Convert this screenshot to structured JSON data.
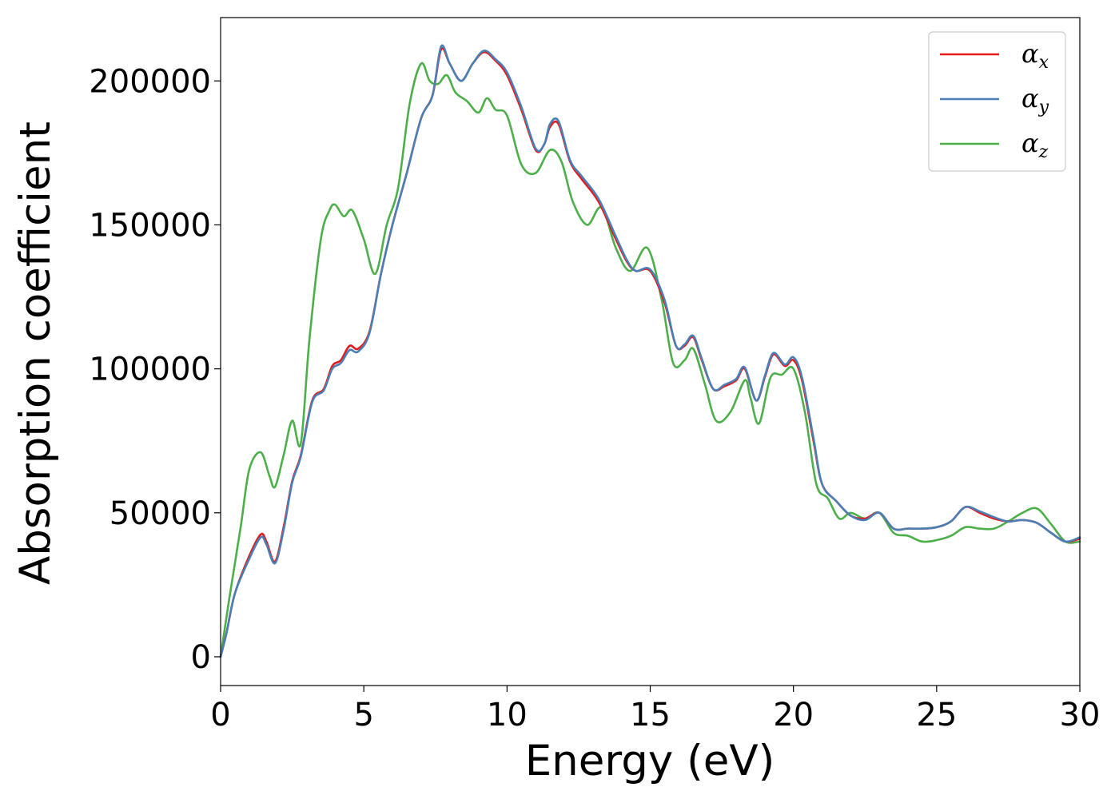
{
  "chart_data": {
    "type": "line",
    "title": "",
    "xlabel": "Energy (eV)",
    "ylabel": "Absorption coefficient",
    "xlim": [
      0,
      30
    ],
    "ylim": [
      -10000,
      222000
    ],
    "xticks": [
      0,
      5,
      10,
      15,
      20,
      25,
      30
    ],
    "xtick_labels": [
      "0",
      "5",
      "10",
      "15",
      "20",
      "25",
      "30"
    ],
    "yticks": [
      0,
      50000,
      100000,
      150000,
      200000
    ],
    "ytick_labels": [
      "0",
      "50000",
      "100000",
      "150000",
      "200000"
    ],
    "grid": false,
    "legend_position": "top-right",
    "series": [
      {
        "name": "α_x",
        "legend_base": "α",
        "legend_sub": "x",
        "color": "#e41a1c",
        "x": [
          0,
          0.2,
          0.5,
          1.0,
          1.4,
          1.6,
          1.9,
          2.2,
          2.5,
          2.8,
          3.2,
          3.6,
          3.9,
          4.2,
          4.5,
          4.8,
          5.2,
          5.6,
          6.0,
          6.5,
          7.0,
          7.4,
          7.7,
          8.0,
          8.4,
          8.8,
          9.2,
          9.6,
          10.0,
          10.5,
          11.0,
          11.3,
          11.5,
          11.8,
          12.2,
          12.6,
          13.2,
          13.8,
          14.2,
          14.5,
          15.0,
          15.5,
          15.9,
          16.2,
          16.5,
          16.8,
          17.2,
          17.6,
          18.0,
          18.3,
          18.7,
          19.0,
          19.3,
          19.7,
          20.0,
          20.3,
          20.7,
          21.0,
          21.5,
          22.0,
          22.5,
          23.0,
          23.5,
          24.0,
          24.5,
          25.0,
          25.5,
          26.0,
          26.5,
          27.0,
          27.5,
          28.0,
          28.5,
          29.0,
          29.5,
          30.0
        ],
        "y": [
          0,
          8000,
          22000,
          35000,
          42500,
          40000,
          33000,
          45000,
          61000,
          70000,
          89000,
          93000,
          101000,
          103000,
          108000,
          107000,
          113000,
          133000,
          150000,
          168000,
          187000,
          195000,
          211000,
          206000,
          200000,
          206000,
          210000,
          207000,
          202000,
          190000,
          176000,
          178000,
          184000,
          185000,
          172000,
          166000,
          158000,
          145000,
          137000,
          134000,
          134000,
          123000,
          108000,
          108000,
          111000,
          103000,
          93000,
          94000,
          96000,
          100000,
          89000,
          97000,
          105000,
          101000,
          103000,
          96000,
          75000,
          60000,
          54000,
          49000,
          48000,
          50000,
          44500,
          44500,
          44500,
          45000,
          47000,
          52000,
          50000,
          48000,
          47000,
          47500,
          46500,
          43000,
          40000,
          41000
        ]
      },
      {
        "name": "α_y",
        "legend_base": "α",
        "legend_sub": "y",
        "color": "#4a7fb5",
        "x": [
          0,
          0.2,
          0.5,
          1.0,
          1.4,
          1.6,
          1.9,
          2.2,
          2.5,
          2.8,
          3.2,
          3.6,
          3.9,
          4.2,
          4.5,
          4.8,
          5.2,
          5.6,
          6.0,
          6.5,
          7.0,
          7.4,
          7.7,
          8.0,
          8.4,
          8.8,
          9.2,
          9.6,
          10.0,
          10.5,
          11.0,
          11.3,
          11.5,
          11.8,
          12.2,
          12.6,
          13.2,
          13.8,
          14.2,
          14.5,
          15.0,
          15.5,
          15.9,
          16.2,
          16.5,
          16.8,
          17.2,
          17.6,
          18.0,
          18.3,
          18.7,
          19.0,
          19.3,
          19.7,
          20.0,
          20.3,
          20.7,
          21.0,
          21.5,
          22.0,
          22.5,
          23.0,
          23.5,
          24.0,
          24.5,
          25.0,
          25.5,
          26.0,
          26.5,
          27.0,
          27.5,
          28.0,
          28.5,
          29.0,
          29.5,
          30.0
        ],
        "y": [
          0,
          8000,
          22000,
          34000,
          41500,
          39000,
          32500,
          44000,
          60500,
          69500,
          88500,
          92500,
          100000,
          102000,
          106500,
          106000,
          112500,
          133000,
          150000,
          168000,
          187000,
          195000,
          212000,
          206000,
          200000,
          206000,
          210500,
          207500,
          203000,
          191000,
          176500,
          178000,
          185000,
          186000,
          172500,
          167000,
          159000,
          146000,
          137500,
          134000,
          134500,
          124000,
          108000,
          108500,
          111500,
          103500,
          93000,
          94500,
          96500,
          100500,
          89000,
          97500,
          105500,
          101500,
          104000,
          97000,
          76000,
          60000,
          54000,
          49000,
          47500,
          50000,
          44500,
          44500,
          44500,
          45000,
          47000,
          52000,
          50500,
          48500,
          47000,
          47500,
          46500,
          43000,
          40000,
          41500
        ]
      },
      {
        "name": "α_z",
        "legend_base": "α",
        "legend_sub": "z",
        "color": "#4daf4a",
        "x": [
          0,
          0.3,
          0.7,
          1.0,
          1.4,
          1.7,
          1.9,
          2.2,
          2.5,
          2.8,
          3.1,
          3.5,
          3.8,
          4.0,
          4.3,
          4.6,
          5.0,
          5.4,
          5.8,
          6.2,
          6.6,
          7.0,
          7.3,
          7.6,
          7.9,
          8.2,
          8.6,
          9.0,
          9.3,
          9.6,
          10.0,
          10.5,
          11.0,
          11.5,
          11.9,
          12.3,
          12.8,
          13.3,
          13.8,
          14.3,
          14.9,
          15.4,
          15.8,
          16.2,
          16.5,
          16.9,
          17.3,
          17.8,
          18.3,
          18.5,
          18.8,
          19.2,
          19.6,
          20.0,
          20.4,
          20.8,
          21.2,
          21.6,
          22.0,
          22.5,
          23.0,
          23.5,
          24.0,
          24.5,
          25.0,
          25.5,
          26.0,
          26.5,
          27.0,
          27.5,
          28.0,
          28.5,
          29.0,
          29.5,
          30.0
        ],
        "y": [
          0,
          20000,
          45000,
          65000,
          71000,
          63000,
          59000,
          70000,
          82000,
          74000,
          110000,
          145000,
          155000,
          157000,
          153000,
          155000,
          145000,
          133000,
          150000,
          163000,
          192000,
          206000,
          200000,
          199000,
          202000,
          196000,
          193000,
          189000,
          194000,
          190000,
          188000,
          171000,
          168000,
          176000,
          172000,
          158000,
          150000,
          156000,
          142000,
          134000,
          142000,
          124000,
          102000,
          103000,
          107000,
          95000,
          82000,
          85000,
          96000,
          90000,
          81000,
          97000,
          98000,
          100000,
          85000,
          60000,
          55000,
          48000,
          50000,
          48000,
          50000,
          43000,
          42000,
          40000,
          40500,
          42000,
          45000,
          44500,
          44500,
          47000,
          50000,
          51500,
          46000,
          40000,
          40000
        ]
      }
    ]
  }
}
